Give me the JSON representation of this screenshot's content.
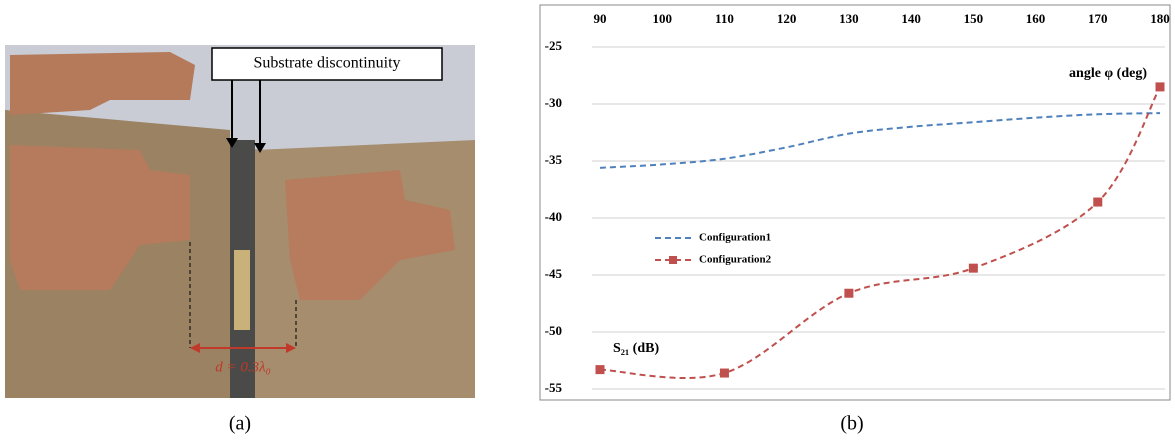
{
  "photo": {
    "label": "Substrate discontinuity",
    "dimension": "d = 0.3λ₀",
    "caption": "(a)"
  },
  "chart_data": {
    "type": "line",
    "caption": "(b)",
    "x_label": "angle φ (deg)",
    "y_label": "S₂₁ (dB)",
    "xlim": [
      90,
      180
    ],
    "xticks": [
      90,
      100,
      110,
      120,
      130,
      140,
      150,
      160,
      170,
      180
    ],
    "ylim": [
      -55,
      -25
    ],
    "yticks": [
      -25,
      -30,
      -35,
      -40,
      -45,
      -50,
      -55
    ],
    "grid": true,
    "x_axis_position": "top",
    "legend": "left",
    "series": [
      {
        "name": "Configuration1",
        "color": "#4f81bd",
        "marker": false,
        "x": [
          90,
          100,
          110,
          120,
          130,
          140,
          150,
          160,
          170,
          180
        ],
        "values": [
          -35.6,
          -35.3,
          -34.8,
          -33.8,
          -32.6,
          -32.0,
          -31.6,
          -31.2,
          -30.9,
          -30.8
        ]
      },
      {
        "name": "Configuration2",
        "color": "#c0504d",
        "marker": true,
        "x": [
          90,
          110,
          130,
          150,
          170,
          180
        ],
        "values": [
          -53.3,
          -53.6,
          -46.6,
          -44.4,
          -38.6,
          -28.5
        ]
      }
    ]
  }
}
